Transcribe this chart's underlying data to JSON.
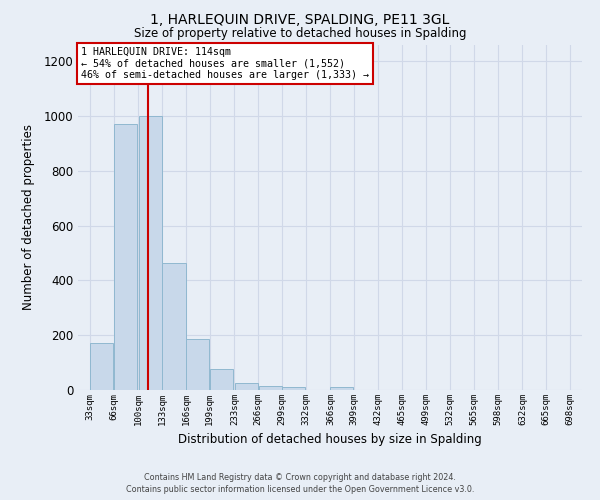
{
  "title": "1, HARLEQUIN DRIVE, SPALDING, PE11 3GL",
  "subtitle": "Size of property relative to detached houses in Spalding",
  "xlabel": "Distribution of detached houses by size in Spalding",
  "ylabel": "Number of detached properties",
  "bar_color": "#c8d8ea",
  "bar_edge_color": "#90b8d0",
  "bar_left_edges": [
    33,
    66,
    100,
    133,
    166,
    199,
    233,
    266,
    299,
    332,
    365,
    398,
    431,
    464,
    497,
    530,
    563,
    596,
    629,
    662
  ],
  "bar_heights": [
    170,
    970,
    1000,
    465,
    185,
    75,
    25,
    15,
    12,
    0,
    10,
    0,
    0,
    0,
    0,
    0,
    0,
    0,
    0,
    0
  ],
  "bin_width": 33,
  "xlim_left": 16.5,
  "xlim_right": 714.5,
  "ylim_top": 1260,
  "yticks": [
    0,
    200,
    400,
    600,
    800,
    1000,
    1200
  ],
  "xtick_labels": [
    "33sqm",
    "66sqm",
    "100sqm",
    "133sqm",
    "166sqm",
    "199sqm",
    "233sqm",
    "266sqm",
    "299sqm",
    "332sqm",
    "366sqm",
    "399sqm",
    "432sqm",
    "465sqm",
    "499sqm",
    "532sqm",
    "565sqm",
    "598sqm",
    "632sqm",
    "665sqm",
    "698sqm"
  ],
  "xtick_positions": [
    33,
    66,
    100,
    133,
    166,
    199,
    233,
    266,
    299,
    332,
    366,
    399,
    432,
    465,
    499,
    532,
    565,
    598,
    632,
    665,
    698
  ],
  "property_size": 114,
  "vline_color": "#cc0000",
  "annotation_title": "1 HARLEQUIN DRIVE: 114sqm",
  "annotation_line1": "← 54% of detached houses are smaller (1,552)",
  "annotation_line2": "46% of semi-detached houses are larger (1,333) →",
  "annotation_box_color": "#ffffff",
  "annotation_box_edge": "#cc0000",
  "grid_color": "#d0d8e8",
  "footer1": "Contains HM Land Registry data © Crown copyright and database right 2024.",
  "footer2": "Contains public sector information licensed under the Open Government Licence v3.0.",
  "background_color": "#e8eef6",
  "plot_bg_color": "#e8eef6"
}
